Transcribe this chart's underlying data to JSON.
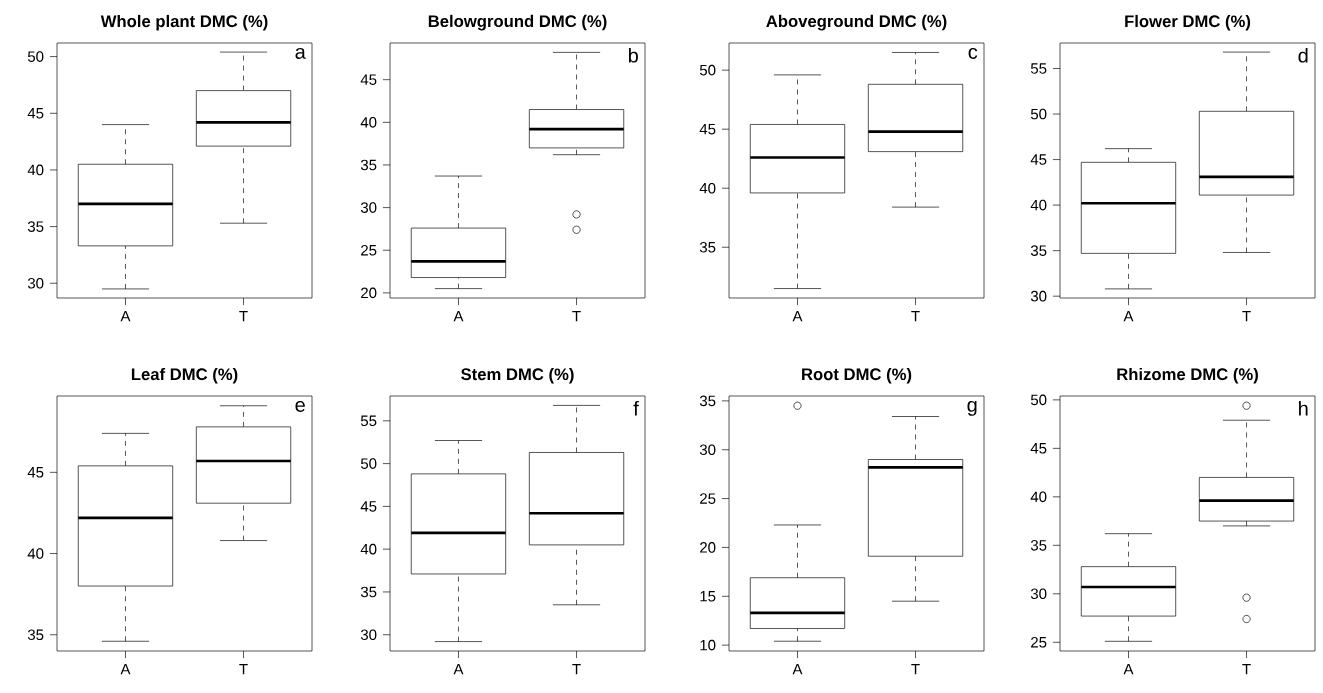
{
  "chart_data": [
    {
      "type": "box",
      "title": "Whole plant DMC (%)",
      "categories": [
        "A",
        "T"
      ],
      "ylim": [
        28.7,
        51.2
      ],
      "yticks": [
        30,
        35,
        40,
        45,
        50
      ],
      "annotations": [
        "a"
      ],
      "boxes": [
        {
          "low": 29.5,
          "q1": 33.3,
          "median": 37.0,
          "q3": 40.5,
          "high": 44.0
        },
        {
          "low": 35.3,
          "q1": 42.1,
          "median": 44.2,
          "q3": 47.0,
          "high": 50.4
        }
      ]
    },
    {
      "type": "box",
      "title": "Belowground DMC (%)",
      "categories": [
        "A",
        "T"
      ],
      "ylim": [
        19.4,
        49.3
      ],
      "yticks": [
        20,
        25,
        30,
        35,
        40,
        45
      ],
      "annotations": [
        "b"
      ],
      "boxes": [
        {
          "low": 20.5,
          "q1": 21.8,
          "median": 23.7,
          "q3": 27.6,
          "high": 33.7
        },
        {
          "low": 36.2,
          "q1": 37.0,
          "median": 39.2,
          "q3": 41.5,
          "high": 48.2,
          "outliers": [
            29.2,
            27.4
          ]
        }
      ]
    },
    {
      "type": "box",
      "title": "Aboveground DMC (%)",
      "categories": [
        "A",
        "T"
      ],
      "ylim": [
        30.7,
        52.3
      ],
      "yticks": [
        35,
        40,
        45,
        50
      ],
      "annotations": [
        "c"
      ],
      "boxes": [
        {
          "low": 31.5,
          "q1": 39.6,
          "median": 42.6,
          "q3": 45.4,
          "high": 49.6
        },
        {
          "low": 38.4,
          "q1": 43.1,
          "median": 44.8,
          "q3": 48.8,
          "high": 51.5
        }
      ]
    },
    {
      "type": "box",
      "title": "Flower DMC (%)",
      "categories": [
        "A",
        "T"
      ],
      "ylim": [
        29.8,
        57.8
      ],
      "yticks": [
        30,
        35,
        40,
        45,
        50,
        55
      ],
      "annotations": [
        "d"
      ],
      "boxes": [
        {
          "low": 30.8,
          "q1": 34.7,
          "median": 40.2,
          "q3": 44.7,
          "high": 46.2
        },
        {
          "low": 34.8,
          "q1": 41.1,
          "median": 43.1,
          "q3": 50.3,
          "high": 56.8
        }
      ]
    },
    {
      "type": "box",
      "title": "Leaf DMC (%)",
      "categories": [
        "A",
        "T"
      ],
      "ylim": [
        34.0,
        49.7
      ],
      "yticks": [
        35,
        40,
        45
      ],
      "annotations": [
        "e"
      ],
      "boxes": [
        {
          "low": 34.6,
          "q1": 38.0,
          "median": 42.2,
          "q3": 45.4,
          "high": 47.4
        },
        {
          "low": 40.8,
          "q1": 43.1,
          "median": 45.7,
          "q3": 47.8,
          "high": 49.1
        }
      ]
    },
    {
      "type": "box",
      "title": "Stem DMC (%)",
      "categories": [
        "A",
        "T"
      ],
      "ylim": [
        28.1,
        57.9
      ],
      "yticks": [
        30,
        35,
        40,
        45,
        50,
        55
      ],
      "annotations": [
        "f"
      ],
      "boxes": [
        {
          "low": 29.2,
          "q1": 37.1,
          "median": 41.9,
          "q3": 48.8,
          "high": 52.7
        },
        {
          "low": 33.5,
          "q1": 40.5,
          "median": 44.2,
          "q3": 51.3,
          "high": 56.8
        }
      ]
    },
    {
      "type": "box",
      "title": "Root DMC (%)",
      "categories": [
        "A",
        "T"
      ],
      "ylim": [
        9.4,
        35.5
      ],
      "yticks": [
        10,
        15,
        20,
        25,
        30,
        35
      ],
      "annotations": [
        "g"
      ],
      "boxes": [
        {
          "low": 10.4,
          "q1": 11.7,
          "median": 13.3,
          "q3": 16.9,
          "high": 22.3,
          "outliers": [
            34.5
          ]
        },
        {
          "low": 14.5,
          "q1": 19.1,
          "median": 28.2,
          "q3": 29.0,
          "high": 33.4
        }
      ]
    },
    {
      "type": "box",
      "title": "Rhizome DMC (%)",
      "categories": [
        "A",
        "T"
      ],
      "ylim": [
        24.1,
        50.4
      ],
      "yticks": [
        25,
        30,
        35,
        40,
        45,
        50
      ],
      "annotations": [
        "h"
      ],
      "boxes": [
        {
          "low": 25.1,
          "q1": 27.7,
          "median": 30.7,
          "q3": 32.8,
          "high": 36.2
        },
        {
          "low": 37.0,
          "q1": 37.5,
          "median": 39.6,
          "q3": 42.0,
          "high": 47.9,
          "outliers": [
            29.6,
            27.4,
            49.4
          ]
        }
      ]
    }
  ]
}
